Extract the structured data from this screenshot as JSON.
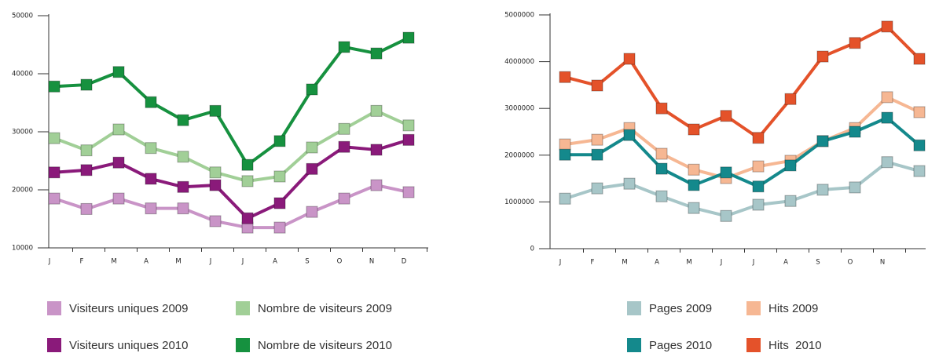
{
  "chart_data": [
    {
      "type": "line",
      "categories": [
        "J",
        "F",
        "M",
        "A",
        "M",
        "J",
        "J",
        "A",
        "S",
        "O",
        "N",
        "D"
      ],
      "series": [
        {
          "name": "Visiteurs uniques 2009",
          "color": "#c994c7",
          "values": [
            18500,
            16700,
            18500,
            16800,
            16800,
            14600,
            13500,
            13500,
            16200,
            18500,
            20800,
            19600
          ]
        },
        {
          "name": "Nombre de visiteurs 2009",
          "color": "#a1cf97",
          "values": [
            28900,
            26800,
            30400,
            27200,
            25700,
            23000,
            21500,
            22300,
            27300,
            30500,
            33600,
            31100
          ]
        },
        {
          "name": "Visiteurs uniques 2010",
          "color": "#8a1a7a",
          "values": [
            23000,
            23400,
            24700,
            21900,
            20500,
            20800,
            15100,
            17700,
            23600,
            27400,
            26900,
            28600
          ]
        },
        {
          "name": "Nombre de visiteurs 2010",
          "color": "#16913f",
          "values": [
            37800,
            38100,
            40300,
            35100,
            32000,
            33600,
            24300,
            28400,
            37300,
            44600,
            43500,
            46200
          ]
        }
      ],
      "ylim": [
        10000,
        50000
      ],
      "yticks": [
        10000,
        20000,
        30000,
        40000,
        50000
      ]
    },
    {
      "type": "line",
      "categories": [
        "J",
        "F",
        "M",
        "A",
        "M",
        "J",
        "J",
        "A",
        "S",
        "O",
        "N",
        null
      ],
      "series": [
        {
          "name": "Pages 2009",
          "color": "#a7c6c8",
          "values": [
            1070000,
            1290000,
            1390000,
            1120000,
            870000,
            700000,
            940000,
            1020000,
            1260000,
            1310000,
            1850000,
            1660000
          ]
        },
        {
          "name": "Hits 2009",
          "color": "#f6b793",
          "values": [
            2230000,
            2330000,
            2580000,
            2030000,
            1690000,
            1510000,
            1760000,
            1880000,
            2300000,
            2580000,
            3240000,
            2920000
          ]
        },
        {
          "name": "Pages 2010",
          "color": "#14898c",
          "values": [
            2010000,
            2010000,
            2430000,
            1710000,
            1360000,
            1630000,
            1330000,
            1780000,
            2300000,
            2500000,
            2800000,
            2210000
          ]
        },
        {
          "name": "Hits  2010",
          "color": "#e4522a",
          "values": [
            3670000,
            3490000,
            4060000,
            3000000,
            2550000,
            2840000,
            2370000,
            3200000,
            4110000,
            4400000,
            4750000,
            4060000
          ]
        }
      ],
      "ylim": [
        0,
        5000000
      ],
      "yticks": [
        0,
        1000000,
        2000000,
        3000000,
        4000000,
        5000000
      ]
    }
  ]
}
